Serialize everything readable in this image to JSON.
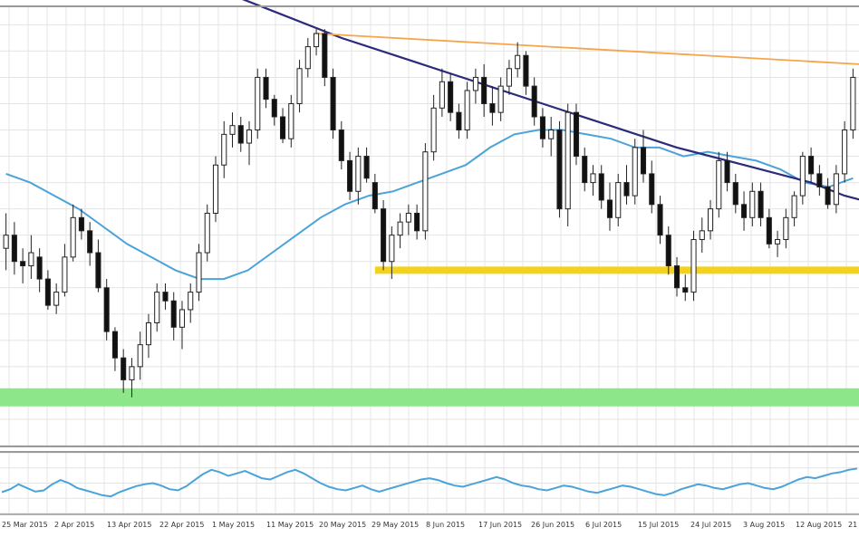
{
  "chart_data": {
    "type": "candlestick",
    "title": "",
    "xlabel": "",
    "ylabel": "",
    "grid": true,
    "colors": {
      "background": "#ffffff",
      "grid": "#e4e4e4",
      "frame": "#9a9a9a",
      "candle_body_down": "#111111",
      "candle_body_up": "#ffffff",
      "candle_outline": "#222222",
      "moving_average_short": "#4aa3d9",
      "moving_average_long": "#2c2a7a",
      "resistance_line": "#f5a54a",
      "support_zone": "#f4d21c",
      "lower_zone": "#8ee68a",
      "oscillator_line": "#4aa3d9"
    },
    "ylim": [
      0,
      100
    ],
    "x_tick_labels": [
      "25 Mar 2015",
      "2 Apr 2015",
      "13 Apr 2015",
      "22 Apr 2015",
      "1 May 2015",
      "11 May 2015",
      "20 May 2015",
      "29 May 2015",
      "8 Jun 2015",
      "17 Jun 2015",
      "26 Jun 2015",
      "6 Jul 2015",
      "15 Jul 2015",
      "24 Jul 2015",
      "3 Aug 2015",
      "12 Aug 2015",
      "21"
    ],
    "candles": [
      {
        "o": 45,
        "h": 53,
        "l": 40,
        "c": 48
      },
      {
        "o": 48,
        "h": 51,
        "l": 39,
        "c": 42
      },
      {
        "o": 42,
        "h": 45,
        "l": 37,
        "c": 41
      },
      {
        "o": 41,
        "h": 48,
        "l": 38,
        "c": 44
      },
      {
        "o": 43,
        "h": 45,
        "l": 35,
        "c": 38
      },
      {
        "o": 38,
        "h": 40,
        "l": 31,
        "c": 32
      },
      {
        "o": 32,
        "h": 37,
        "l": 30,
        "c": 35
      },
      {
        "o": 35,
        "h": 46,
        "l": 34,
        "c": 43
      },
      {
        "o": 43,
        "h": 55,
        "l": 42,
        "c": 52
      },
      {
        "o": 52,
        "h": 54,
        "l": 47,
        "c": 49
      },
      {
        "o": 49,
        "h": 51,
        "l": 41,
        "c": 44
      },
      {
        "o": 44,
        "h": 47,
        "l": 35,
        "c": 36
      },
      {
        "o": 36,
        "h": 38,
        "l": 24,
        "c": 26
      },
      {
        "o": 26,
        "h": 27,
        "l": 17,
        "c": 20
      },
      {
        "o": 20,
        "h": 22,
        "l": 12,
        "c": 15
      },
      {
        "o": 15,
        "h": 20,
        "l": 11,
        "c": 18
      },
      {
        "o": 18,
        "h": 26,
        "l": 15,
        "c": 23
      },
      {
        "o": 23,
        "h": 30,
        "l": 20,
        "c": 28
      },
      {
        "o": 28,
        "h": 37,
        "l": 26,
        "c": 35
      },
      {
        "o": 35,
        "h": 37,
        "l": 31,
        "c": 33
      },
      {
        "o": 33,
        "h": 35,
        "l": 24,
        "c": 27
      },
      {
        "o": 27,
        "h": 33,
        "l": 22,
        "c": 31
      },
      {
        "o": 31,
        "h": 37,
        "l": 28,
        "c": 35
      },
      {
        "o": 35,
        "h": 46,
        "l": 33,
        "c": 44
      },
      {
        "o": 44,
        "h": 55,
        "l": 42,
        "c": 53
      },
      {
        "o": 53,
        "h": 66,
        "l": 51,
        "c": 64
      },
      {
        "o": 64,
        "h": 74,
        "l": 61,
        "c": 71
      },
      {
        "o": 71,
        "h": 76,
        "l": 68,
        "c": 73
      },
      {
        "o": 73,
        "h": 75,
        "l": 67,
        "c": 69
      },
      {
        "o": 69,
        "h": 74,
        "l": 64,
        "c": 72
      },
      {
        "o": 72,
        "h": 86,
        "l": 70,
        "c": 84
      },
      {
        "o": 84,
        "h": 86,
        "l": 77,
        "c": 79
      },
      {
        "o": 79,
        "h": 80,
        "l": 73,
        "c": 75
      },
      {
        "o": 75,
        "h": 77,
        "l": 69,
        "c": 70
      },
      {
        "o": 70,
        "h": 80,
        "l": 68,
        "c": 78
      },
      {
        "o": 78,
        "h": 88,
        "l": 76,
        "c": 86
      },
      {
        "o": 86,
        "h": 93,
        "l": 84,
        "c": 91
      },
      {
        "o": 91,
        "h": 95,
        "l": 89,
        "c": 94
      },
      {
        "o": 94,
        "h": 95,
        "l": 82,
        "c": 84
      },
      {
        "o": 84,
        "h": 86,
        "l": 70,
        "c": 72
      },
      {
        "o": 72,
        "h": 74,
        "l": 63,
        "c": 65
      },
      {
        "o": 65,
        "h": 67,
        "l": 56,
        "c": 58
      },
      {
        "o": 58,
        "h": 68,
        "l": 55,
        "c": 66
      },
      {
        "o": 66,
        "h": 68,
        "l": 60,
        "c": 61
      },
      {
        "o": 60,
        "h": 62,
        "l": 53,
        "c": 54
      },
      {
        "o": 54,
        "h": 56,
        "l": 40,
        "c": 42
      },
      {
        "o": 42,
        "h": 50,
        "l": 38,
        "c": 48
      },
      {
        "o": 48,
        "h": 53,
        "l": 45,
        "c": 51
      },
      {
        "o": 51,
        "h": 55,
        "l": 48,
        "c": 53
      },
      {
        "o": 53,
        "h": 55,
        "l": 47,
        "c": 49
      },
      {
        "o": 49,
        "h": 69,
        "l": 47,
        "c": 67
      },
      {
        "o": 67,
        "h": 80,
        "l": 65,
        "c": 77
      },
      {
        "o": 77,
        "h": 86,
        "l": 75,
        "c": 83
      },
      {
        "o": 83,
        "h": 85,
        "l": 74,
        "c": 76
      },
      {
        "o": 76,
        "h": 78,
        "l": 70,
        "c": 72
      },
      {
        "o": 72,
        "h": 83,
        "l": 70,
        "c": 81
      },
      {
        "o": 81,
        "h": 86,
        "l": 78,
        "c": 84
      },
      {
        "o": 84,
        "h": 87,
        "l": 75,
        "c": 78
      },
      {
        "o": 78,
        "h": 82,
        "l": 73,
        "c": 76
      },
      {
        "o": 76,
        "h": 84,
        "l": 74,
        "c": 82
      },
      {
        "o": 82,
        "h": 88,
        "l": 80,
        "c": 86
      },
      {
        "o": 86,
        "h": 92,
        "l": 84,
        "c": 89
      },
      {
        "o": 89,
        "h": 90,
        "l": 80,
        "c": 82
      },
      {
        "o": 82,
        "h": 84,
        "l": 73,
        "c": 75
      },
      {
        "o": 75,
        "h": 77,
        "l": 68,
        "c": 70
      },
      {
        "o": 70,
        "h": 75,
        "l": 66,
        "c": 72
      },
      {
        "o": 72,
        "h": 74,
        "l": 52,
        "c": 54
      },
      {
        "o": 54,
        "h": 78,
        "l": 50,
        "c": 76
      },
      {
        "o": 76,
        "h": 78,
        "l": 64,
        "c": 66
      },
      {
        "o": 66,
        "h": 68,
        "l": 58,
        "c": 60
      },
      {
        "o": 60,
        "h": 64,
        "l": 57,
        "c": 62
      },
      {
        "o": 62,
        "h": 64,
        "l": 54,
        "c": 56
      },
      {
        "o": 56,
        "h": 60,
        "l": 49,
        "c": 52
      },
      {
        "o": 52,
        "h": 62,
        "l": 50,
        "c": 60
      },
      {
        "o": 60,
        "h": 64,
        "l": 55,
        "c": 57
      },
      {
        "o": 57,
        "h": 70,
        "l": 55,
        "c": 68
      },
      {
        "o": 68,
        "h": 72,
        "l": 60,
        "c": 62
      },
      {
        "o": 62,
        "h": 65,
        "l": 53,
        "c": 55
      },
      {
        "o": 55,
        "h": 57,
        "l": 46,
        "c": 48
      },
      {
        "o": 48,
        "h": 50,
        "l": 39,
        "c": 41
      },
      {
        "o": 41,
        "h": 43,
        "l": 34,
        "c": 36
      },
      {
        "o": 36,
        "h": 39,
        "l": 33,
        "c": 35
      },
      {
        "o": 35,
        "h": 49,
        "l": 33,
        "c": 47
      },
      {
        "o": 47,
        "h": 52,
        "l": 44,
        "c": 49
      },
      {
        "o": 49,
        "h": 56,
        "l": 47,
        "c": 54
      },
      {
        "o": 54,
        "h": 67,
        "l": 52,
        "c": 65
      },
      {
        "o": 65,
        "h": 67,
        "l": 58,
        "c": 60
      },
      {
        "o": 60,
        "h": 62,
        "l": 53,
        "c": 55
      },
      {
        "o": 55,
        "h": 58,
        "l": 49,
        "c": 52
      },
      {
        "o": 52,
        "h": 60,
        "l": 50,
        "c": 58
      },
      {
        "o": 58,
        "h": 60,
        "l": 50,
        "c": 52
      },
      {
        "o": 52,
        "h": 54,
        "l": 45,
        "c": 46
      },
      {
        "o": 46,
        "h": 49,
        "l": 43,
        "c": 47
      },
      {
        "o": 47,
        "h": 54,
        "l": 45,
        "c": 52
      },
      {
        "o": 52,
        "h": 58,
        "l": 50,
        "c": 57
      },
      {
        "o": 57,
        "h": 67,
        "l": 55,
        "c": 66
      },
      {
        "o": 66,
        "h": 68,
        "l": 60,
        "c": 62
      },
      {
        "o": 62,
        "h": 64,
        "l": 57,
        "c": 59
      },
      {
        "o": 59,
        "h": 61,
        "l": 54,
        "c": 55
      },
      {
        "o": 55,
        "h": 64,
        "l": 53,
        "c": 62
      },
      {
        "o": 62,
        "h": 74,
        "l": 60,
        "c": 72
      },
      {
        "o": 72,
        "h": 86,
        "l": 70,
        "c": 84
      }
    ],
    "moving_average_short": [
      62,
      60,
      57,
      54,
      50,
      46,
      43,
      40,
      38,
      38,
      40,
      44,
      48,
      52,
      55,
      57,
      58,
      60,
      62,
      64,
      68,
      71,
      72,
      72,
      71,
      70,
      68,
      68,
      66,
      67,
      66,
      65,
      63,
      60,
      59,
      61
    ],
    "moving_average_long": [
      105,
      99,
      93,
      88,
      83,
      78,
      73,
      68,
      64,
      60,
      57,
      55,
      53,
      51
    ],
    "moving_average_long_x": [
      24,
      32,
      40,
      48,
      56,
      64,
      72,
      80,
      88,
      96,
      100,
      104,
      108,
      111
    ],
    "resistance_line": {
      "x1": 37,
      "y1": 94,
      "x2": 111,
      "y2": 86
    },
    "support_zone": {
      "x1": 44,
      "x2": 111,
      "y": 40
    },
    "support_zone_short": {
      "x1": 103,
      "x2": 111,
      "y": 58
    },
    "lower_zone": {
      "y": 11
    },
    "oscillator": {
      "ylim": [
        0,
        100
      ],
      "values": [
        35,
        40,
        48,
        42,
        36,
        38,
        48,
        55,
        50,
        42,
        38,
        34,
        30,
        28,
        35,
        40,
        45,
        48,
        50,
        46,
        40,
        38,
        45,
        55,
        65,
        72,
        68,
        62,
        66,
        70,
        64,
        58,
        56,
        62,
        68,
        72,
        66,
        58,
        50,
        44,
        40,
        38,
        42,
        46,
        40,
        36,
        40,
        44,
        48,
        52,
        56,
        58,
        55,
        50,
        46,
        44,
        48,
        52,
        56,
        60,
        56,
        50,
        46,
        44,
        40,
        38,
        42,
        46,
        44,
        40,
        36,
        34,
        38,
        42,
        46,
        44,
        40,
        36,
        32,
        30,
        34,
        40,
        44,
        48,
        46,
        42,
        40,
        44,
        48,
        50,
        46,
        42,
        40,
        44,
        50,
        56,
        60,
        58,
        62,
        66,
        68,
        72,
        74
      ]
    }
  }
}
